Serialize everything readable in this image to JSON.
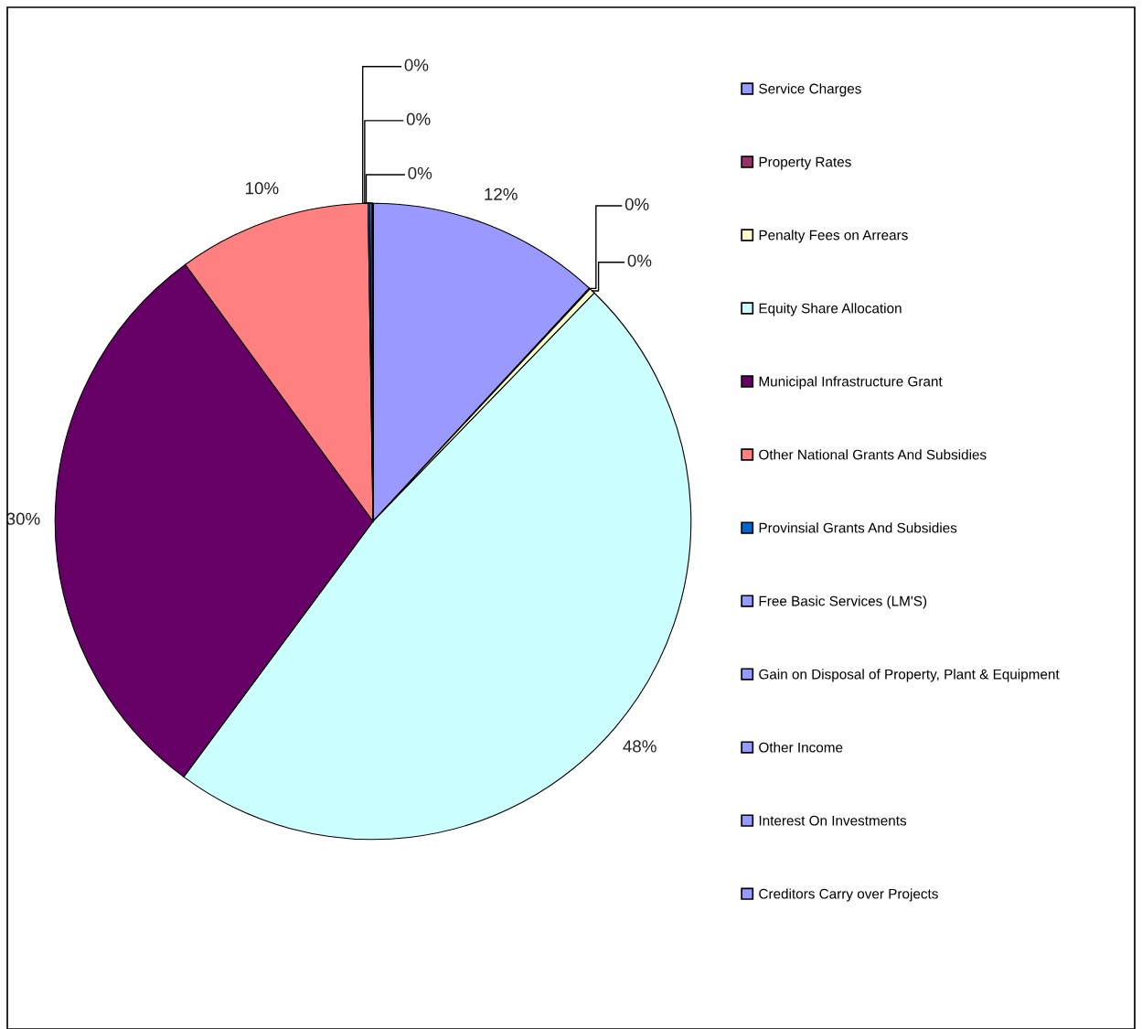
{
  "chart_data": {
    "type": "pie",
    "categories": [
      "Service Charges",
      "Property Rates",
      "Penalty Fees on Arrears",
      "Equity Share Allocation",
      "Municipal Infrastructure Grant",
      "Other National Grants And Subsidies",
      "Provinsial Grants And Subsidies",
      "Free Basic Services (LM'S)",
      "Gain on Disposal of Property, Plant & Equipment",
      "Other Income",
      "Interest On Investments",
      "Creditors Carry over Projects"
    ],
    "values": [
      11.9,
      0.05,
      0.3,
      47.9,
      29.8,
      9.8,
      0.1,
      0.1,
      0.05,
      0,
      0,
      0
    ],
    "value_labels": [
      "12%",
      "0%",
      "0%",
      "48%",
      "30%",
      "10%",
      "0%",
      "0%",
      "0%",
      null,
      null,
      null
    ],
    "colors": [
      "#9999ff",
      "#993366",
      "#ffffcc",
      "#ccffff",
      "#660066",
      "#ff8080",
      "#0066cc",
      "#9999ff",
      "#9999ff",
      "#9999ff",
      "#9999ff",
      "#9999ff"
    ],
    "legend": "right"
  }
}
